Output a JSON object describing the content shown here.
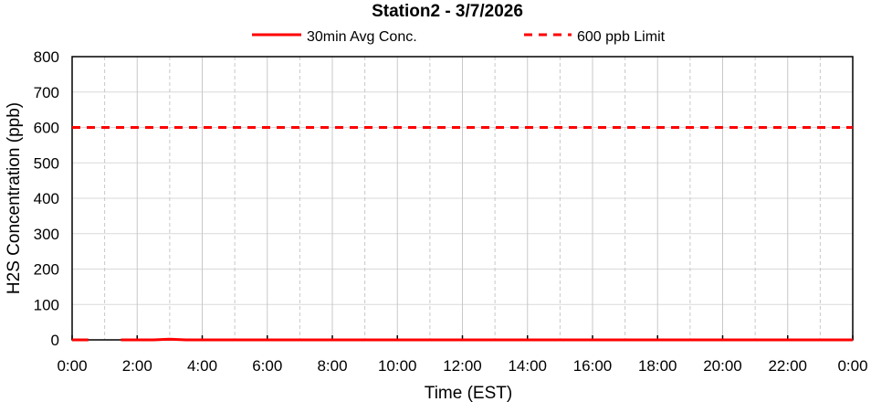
{
  "chart_data": {
    "type": "line",
    "title": "Station2  - 3/7/2026",
    "xlabel": "Time (EST)",
    "ylabel": "H2S Concentration (ppb)",
    "ylim": [
      0,
      800
    ],
    "xlim_hours": [
      0,
      24
    ],
    "yticks": [
      0,
      100,
      200,
      300,
      400,
      500,
      600,
      700,
      800
    ],
    "xticks": [
      "0:00",
      "2:00",
      "4:00",
      "6:00",
      "8:00",
      "10:00",
      "12:00",
      "14:00",
      "16:00",
      "18:00",
      "20:00",
      "22:00",
      "0:00"
    ],
    "grid": true,
    "legend": "top",
    "series": [
      {
        "name": "30min Avg Conc.",
        "color": "#ff0000",
        "style": "solid",
        "x": [
          "0:00",
          "0:30",
          "1:00",
          "1:30",
          "2:00",
          "2:30",
          "3:00",
          "3:30",
          "4:00",
          "4:30",
          "5:00",
          "5:30",
          "6:00",
          "6:30",
          "7:00",
          "7:30",
          "8:00",
          "8:30",
          "9:00",
          "9:30",
          "10:00",
          "10:30",
          "11:00",
          "11:30",
          "12:00",
          "12:30",
          "13:00",
          "13:30",
          "14:00",
          "14:30",
          "15:00",
          "15:30",
          "16:00",
          "16:30",
          "17:00",
          "17:30",
          "18:00",
          "18:30",
          "19:00",
          "19:30",
          "20:00",
          "20:30",
          "21:00",
          "21:30",
          "22:00",
          "22:30",
          "23:00",
          "23:30",
          "24:00"
        ],
        "values": [
          0,
          0,
          null,
          0,
          0,
          0,
          2,
          0,
          0,
          0,
          0,
          0,
          0,
          0,
          0,
          0,
          0,
          0,
          0,
          0,
          0,
          0,
          0,
          0,
          0,
          0,
          0,
          0,
          0,
          0,
          0,
          0,
          0,
          0,
          0,
          0,
          0,
          0,
          0,
          0,
          0,
          0,
          0,
          0,
          0,
          0,
          0,
          0,
          0
        ]
      },
      {
        "name": "600 ppb Limit",
        "color": "#ff0000",
        "style": "dashed",
        "x": [
          "0:00",
          "24:00"
        ],
        "values": [
          600,
          600
        ]
      }
    ]
  }
}
